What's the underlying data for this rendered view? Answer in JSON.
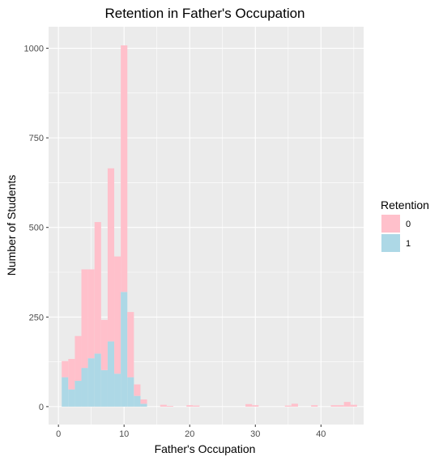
{
  "chart_data": {
    "type": "bar",
    "stacked": true,
    "title": "Retention in Father's Occupation",
    "xlabel": "Father's Occupation",
    "ylabel": "Number of Students",
    "xlim": [
      -1.5,
      46.5
    ],
    "ylim": [
      -50,
      1060
    ],
    "xticks": [
      0,
      10,
      20,
      30,
      40
    ],
    "yticks": [
      0,
      250,
      500,
      750,
      1000
    ],
    "grid": true,
    "panel_background": "#ebebeb",
    "legend": {
      "title": "Retention",
      "position": "right",
      "entries": [
        {
          "label": "0",
          "color": "#ffc0cb"
        },
        {
          "label": "1",
          "color": "#add8e6"
        }
      ]
    },
    "bin_width": 1,
    "x": [
      1,
      2,
      3,
      4,
      5,
      6,
      7,
      8,
      9,
      10,
      11,
      12,
      13,
      14,
      15,
      16,
      17,
      18,
      19,
      20,
      21,
      22,
      23,
      24,
      25,
      26,
      27,
      28,
      29,
      30,
      31,
      32,
      33,
      34,
      35,
      36,
      37,
      38,
      39,
      40,
      41,
      42,
      43,
      44,
      45
    ],
    "series": [
      {
        "name": "1",
        "color": "#add8e6",
        "values": [
          82,
          48,
          72,
          108,
          135,
          148,
          102,
          182,
          92,
          320,
          82,
          30,
          8,
          0,
          0,
          0,
          0,
          0,
          0,
          0,
          0,
          0,
          0,
          0,
          0,
          0,
          0,
          0,
          0,
          0,
          0,
          0,
          0,
          0,
          0,
          0,
          0,
          0,
          0,
          0,
          0,
          0,
          0,
          0,
          0
        ]
      },
      {
        "name": "0",
        "color": "#ffc0cb",
        "values": [
          45,
          85,
          125,
          275,
          248,
          367,
          140,
          483,
          327,
          688,
          182,
          32,
          12,
          0,
          0,
          5,
          2,
          0,
          0,
          4,
          3,
          0,
          0,
          0,
          0,
          0,
          0,
          0,
          7,
          4,
          0,
          0,
          0,
          0,
          3,
          8,
          0,
          0,
          4,
          0,
          0,
          4,
          4,
          13,
          5
        ]
      }
    ]
  }
}
